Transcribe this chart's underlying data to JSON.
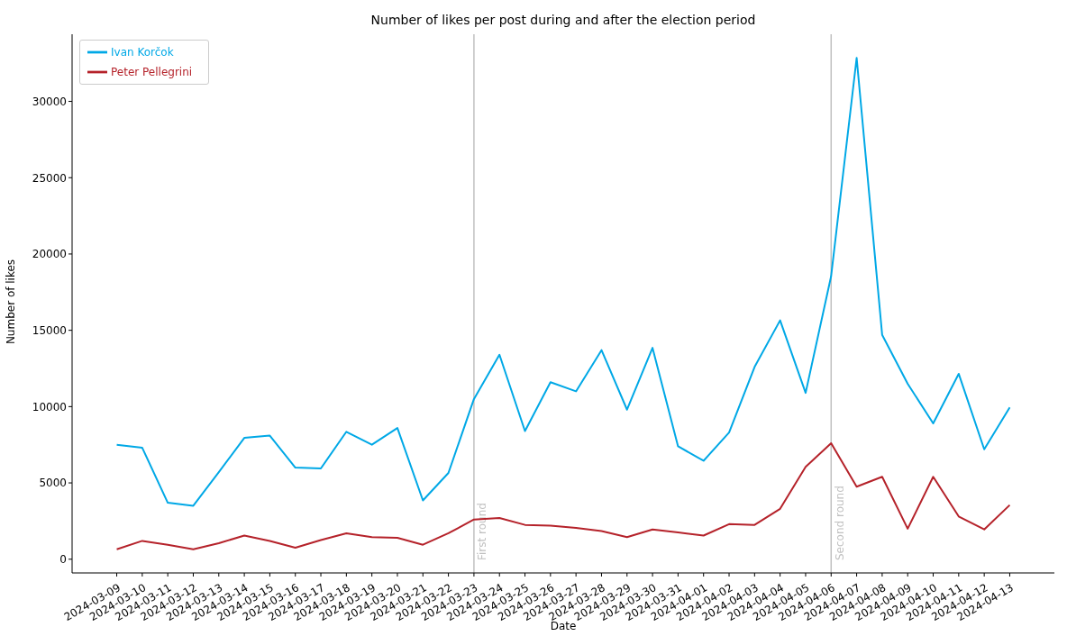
{
  "chart_data": {
    "type": "line",
    "title": "Number of likes per post during and after the election period",
    "xlabel": "Date",
    "ylabel": "Number of likes",
    "categories": [
      "2024-03-09",
      "2024-03-10",
      "2024-03-11",
      "2024-03-12",
      "2024-03-13",
      "2024-03-14",
      "2024-03-15",
      "2024-03-16",
      "2024-03-17",
      "2024-03-18",
      "2024-03-19",
      "2024-03-20",
      "2024-03-21",
      "2024-03-22",
      "2024-03-23",
      "2024-03-24",
      "2024-03-25",
      "2024-03-26",
      "2024-03-27",
      "2024-03-28",
      "2024-03-29",
      "2024-03-30",
      "2024-03-31",
      "2024-04-01",
      "2024-04-02",
      "2024-04-03",
      "2024-04-04",
      "2024-04-05",
      "2024-04-06",
      "2024-04-07",
      "2024-04-08",
      "2024-04-09",
      "2024-04-10",
      "2024-04-11",
      "2024-04-12",
      "2024-04-13"
    ],
    "series": [
      {
        "name": "Ivan Korčok",
        "color": "#00a8e6",
        "values": [
          7500,
          7300,
          3700,
          3500,
          5700,
          7950,
          8100,
          6000,
          5950,
          8350,
          7500,
          8600,
          3850,
          5650,
          10500,
          13400,
          8400,
          11600,
          11000,
          13700,
          9800,
          13850,
          7400,
          6450,
          8300,
          12600,
          15650,
          10900,
          18550,
          32850,
          14700,
          11500,
          8900,
          12150,
          7200,
          9950
        ]
      },
      {
        "name": "Peter Pellegrini",
        "color": "#b5222a",
        "values": [
          650,
          1200,
          950,
          650,
          1050,
          1550,
          1200,
          750,
          1250,
          1700,
          1450,
          1400,
          950,
          1700,
          2600,
          2700,
          2250,
          2200,
          2050,
          1850,
          1450,
          1950,
          1750,
          1550,
          2300,
          2250,
          3300,
          6050,
          7600,
          4750,
          5400,
          2000,
          5400,
          2800,
          1950,
          3550
        ]
      }
    ],
    "ylim": [
      -900,
      34400
    ],
    "yticks": [
      0,
      5000,
      10000,
      15000,
      20000,
      25000,
      30000
    ],
    "ref_lines": [
      {
        "axis": "x",
        "value": "2024-03-23",
        "label": "First round",
        "color": "#c0c0c0"
      },
      {
        "axis": "x",
        "value": "2024-04-06",
        "label": "Second round",
        "color": "#c0c0c0"
      }
    ],
    "legend": "top left",
    "grid": false
  }
}
